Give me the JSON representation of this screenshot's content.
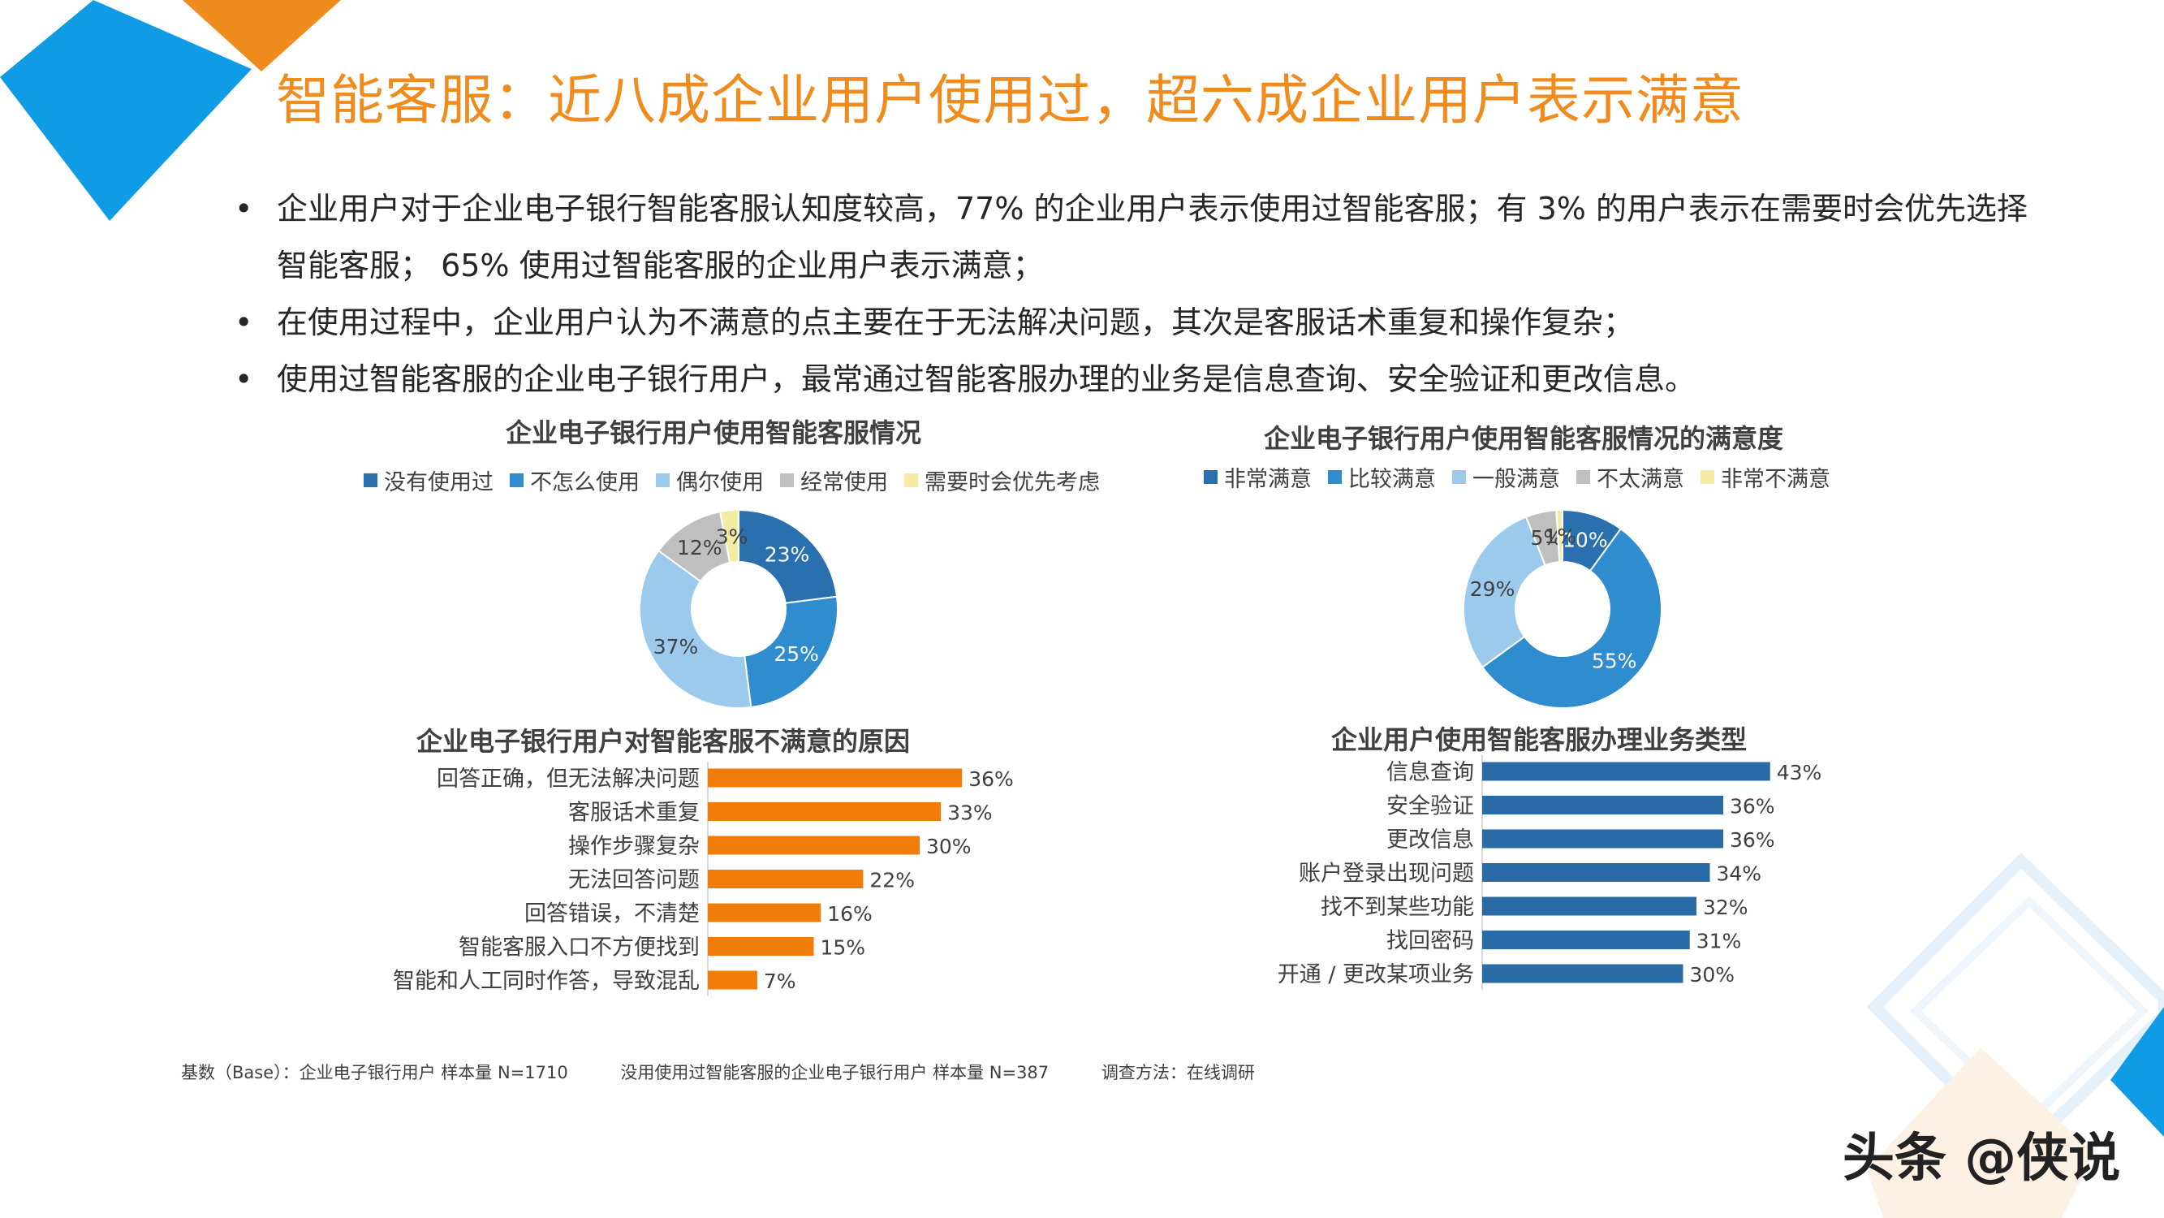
{
  "title": "智能客服：近八成企业用户使用过，超六成企业用户表示满意",
  "bullets": [
    "企业用户对于企业电子银行智能客服认知度较高，77% 的企业用户表示使用过智能客服；有 3% 的用户表示在需要时会优先选择智能客服； 65% 使用过智能客服的企业用户表示满意；",
    "在使用过程中，企业用户认为不满意的点主要在于无法解决问题，其次是客服话术重复和操作复杂；",
    "使用过智能客服的企业电子银行用户，最常通过智能客服办理的业务是信息查询、安全验证和更改信息。"
  ],
  "chart_data": [
    {
      "type": "pie",
      "title": "企业电子银行用户使用智能客服情况",
      "categories": [
        "没有使用过",
        "不怎么使用",
        "偶尔使用",
        "经常使用",
        "需要时会优先考虑"
      ],
      "values": [
        23,
        25,
        37,
        12,
        3
      ],
      "labels": [
        "23%",
        "25%",
        "37%",
        "12%",
        "3%"
      ],
      "colors": [
        "#2a6fae",
        "#2e8ccf",
        "#9ccaec",
        "#bfbfbf",
        "#f3eca2"
      ],
      "label_colors": [
        "#ffffff",
        "#ffffff",
        "#404040",
        "#404040",
        "#404040"
      ],
      "legend_position": "top"
    },
    {
      "type": "pie",
      "title": "企业电子银行用户使用智能客服情况的满意度",
      "categories": [
        "非常满意",
        "比较满意",
        "一般满意",
        "不太满意",
        "非常不满意"
      ],
      "values": [
        10,
        55,
        29,
        5,
        1
      ],
      "labels": [
        "10%",
        "55%",
        "29%",
        "5%",
        "1%"
      ],
      "colors": [
        "#2a6fae",
        "#2e8ccf",
        "#9ccaec",
        "#bfbfbf",
        "#f3eca2"
      ],
      "label_colors": [
        "#ffffff",
        "#ffffff",
        "#404040",
        "#404040",
        "#404040"
      ],
      "legend_position": "top"
    },
    {
      "type": "bar",
      "orientation": "horizontal",
      "title": "企业电子银行用户对智能客服不满意的原因",
      "categories": [
        "回答正确，但无法解决问题",
        "客服话术重复",
        "操作步骤复杂",
        "无法回答问题",
        "回答错误，不清楚",
        "智能客服入口不方便找到",
        "智能和人工同时作答，导致混乱"
      ],
      "values": [
        36,
        33,
        30,
        22,
        16,
        15,
        7
      ],
      "labels": [
        "36%",
        "33%",
        "30%",
        "22%",
        "16%",
        "15%",
        "7%"
      ],
      "color": "#f07c0a"
    },
    {
      "type": "bar",
      "orientation": "horizontal",
      "title": "企业用户使用智能客服办理业务类型",
      "categories": [
        "信息查询",
        "安全验证",
        "更改信息",
        "账户登录出现问题",
        "找不到某些功能",
        "找回密码",
        "开通 / 更改某项业务"
      ],
      "values": [
        43,
        36,
        36,
        34,
        32,
        31,
        30
      ],
      "labels": [
        "43%",
        "36%",
        "36%",
        "34%",
        "32%",
        "31%",
        "30%"
      ],
      "color": "#2a6aa6"
    }
  ],
  "footnote": {
    "base": "基数（Base）：企业电子银行用户  样本量 N=1710",
    "sub": "没用使用过智能客服的企业电子银行用户  样本量 N=387",
    "method": "调查方法：在线调研"
  },
  "watermark": "头条 @侠说",
  "colors": {
    "title": "#f08c1e",
    "deco_blue": "#0f9be6",
    "deco_orange": "#f08c1e"
  }
}
